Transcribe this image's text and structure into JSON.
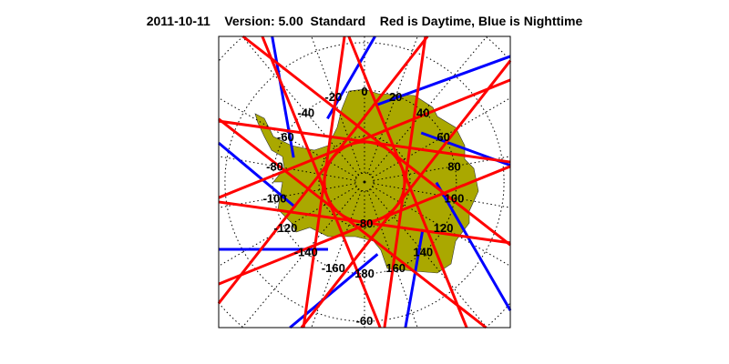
{
  "title": {
    "date": "2011-10-11",
    "version": "Version: 5.00",
    "product": "Standard",
    "legend": "Red is Daytime, Blue is Nighttime"
  },
  "map": {
    "projection": "south polar stereographic",
    "region": "Antarctica",
    "colors": {
      "land": "#aaa800",
      "day_track": "#ff0000",
      "night_track": "#0000ff",
      "grid": "#000000"
    },
    "longitude_labels": [
      "0",
      "20",
      "40",
      "60",
      "80",
      "100",
      "120",
      "140",
      "160",
      "180",
      "-160",
      "-140",
      "-120",
      "-100",
      "-80",
      "-60",
      "-40",
      "-20"
    ],
    "latitude_labels": [
      "-80",
      "-60"
    ]
  }
}
